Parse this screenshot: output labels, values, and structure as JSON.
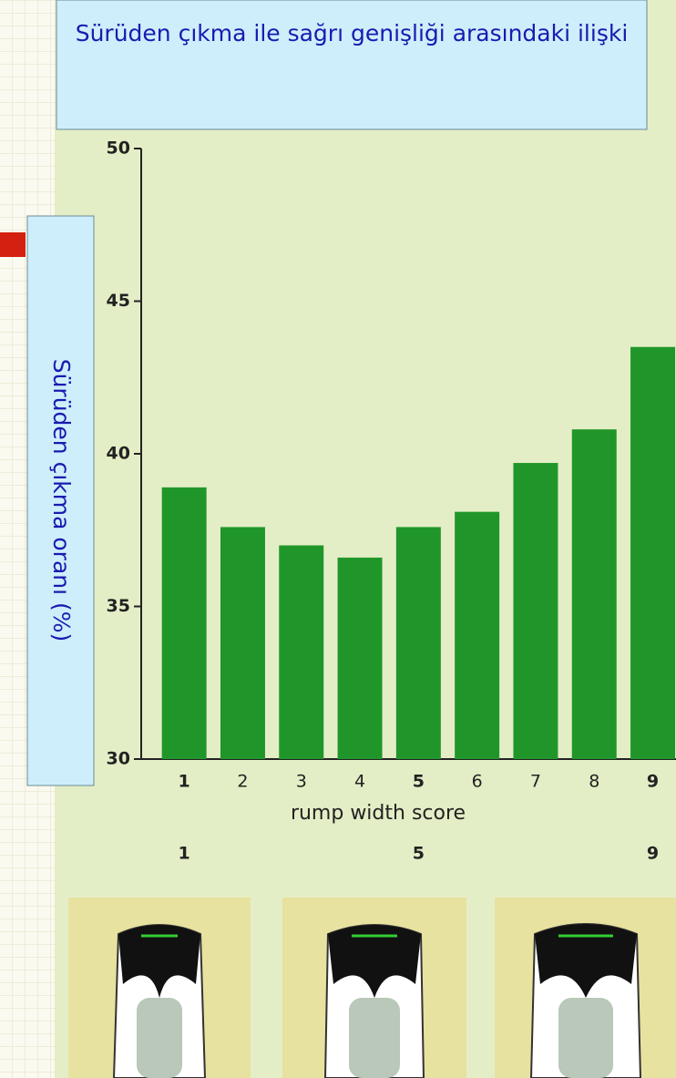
{
  "chart_data": {
    "type": "bar",
    "title": "Sürüden çıkma ile sağrı genişliği arasındaki ilişki",
    "ylabel": "Sürüden çıkma oranı (%)",
    "xlabel": "rump width score",
    "categories": [
      "1",
      "2",
      "3",
      "4",
      "5",
      "6",
      "7",
      "8",
      "9"
    ],
    "values": [
      38.9,
      37.6,
      37.0,
      36.6,
      37.6,
      38.1,
      39.7,
      40.8,
      43.5
    ],
    "color": "#20962a",
    "ylim": [
      30,
      50
    ],
    "yticks": [
      30,
      35,
      40,
      45,
      50
    ],
    "score_labels": [
      "1",
      "5",
      "9"
    ]
  }
}
